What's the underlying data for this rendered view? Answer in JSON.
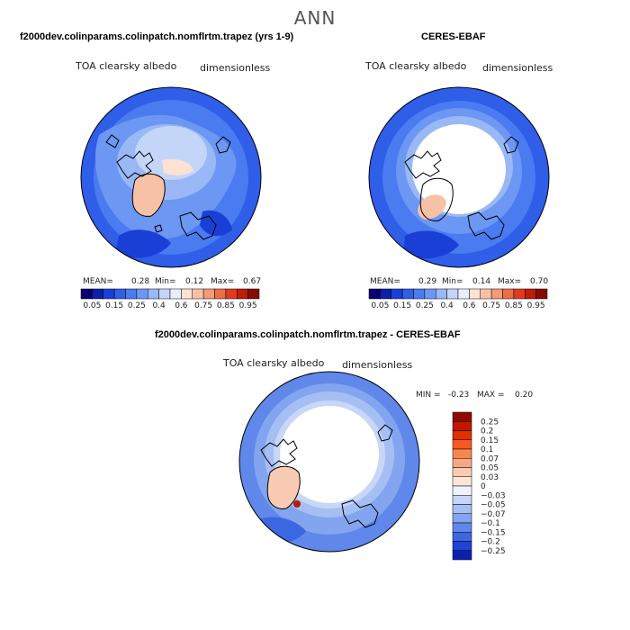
{
  "page": {
    "title": "ANN"
  },
  "panels": [
    {
      "id": "model",
      "title": "f2000dev.colinparams.colinpatch.nomflrtm.trapez (yrs 1-9)",
      "left_label": "TOA clearsky albedo",
      "right_label": "dimensionless",
      "stats": {
        "mean_label": "MEAN=",
        "mean": "0.28",
        "min_label": "Min=",
        "min": "0.12",
        "max_label": "Max=",
        "max": "0.67"
      }
    },
    {
      "id": "obs",
      "title": "CERES-EBAF",
      "left_label": "TOA clearsky albedo",
      "right_label": "dimensionless",
      "stats": {
        "mean_label": "MEAN=",
        "mean": "0.29",
        "min_label": "Min=",
        "min": "0.14",
        "max_label": "Max=",
        "max": "0.70"
      }
    },
    {
      "id": "diff",
      "title": "f2000dev.colinparams.colinpatch.nomflrtm.trapez - CERES-EBAF",
      "left_label": "TOA clearsky albedo",
      "right_label": "dimensionless",
      "stats": {
        "min_label": "MIN =",
        "min": "-0.23",
        "max_label": "MAX =",
        "max": "0.20"
      }
    }
  ],
  "chart_data": [
    {
      "type": "heatmap",
      "projection": "north-polar-stereographic",
      "title": "f2000dev.colinparams.colinpatch.nomflrtm.trapez (yrs 1-9)",
      "variable": "TOA clearsky albedo",
      "units": "dimensionless",
      "mean": 0.28,
      "min": 0.12,
      "max": 0.67,
      "colorbar": {
        "orientation": "horizontal",
        "tick_labels": [
          "0.05",
          "0.15",
          "0.25",
          "0.4",
          "0.6",
          "0.75",
          "0.85",
          "0.95"
        ],
        "levels": [
          0.05,
          0.1,
          0.15,
          0.2,
          0.25,
          0.3,
          0.4,
          0.5,
          0.6,
          0.7,
          0.75,
          0.8,
          0.85,
          0.9,
          0.95
        ],
        "colors": [
          "#08006e",
          "#0c1fa8",
          "#1a3fd6",
          "#2f5ee8",
          "#4a7bf0",
          "#6c97f2",
          "#99b8f5",
          "#c3d6f8",
          "#e6eefb",
          "#fbe2d5",
          "#f7c1a6",
          "#f39a76",
          "#ec6c48",
          "#e03a20",
          "#c01c0c",
          "#8a0a02"
        ]
      }
    },
    {
      "type": "heatmap",
      "projection": "north-polar-stereographic",
      "title": "CERES-EBAF",
      "variable": "TOA clearsky albedo",
      "units": "dimensionless",
      "mean": 0.29,
      "min": 0.14,
      "max": 0.7,
      "colorbar": {
        "orientation": "horizontal",
        "tick_labels": [
          "0.05",
          "0.15",
          "0.25",
          "0.4",
          "0.6",
          "0.75",
          "0.85",
          "0.95"
        ],
        "levels": [
          0.05,
          0.1,
          0.15,
          0.2,
          0.25,
          0.3,
          0.4,
          0.5,
          0.6,
          0.7,
          0.75,
          0.8,
          0.85,
          0.9,
          0.95
        ],
        "colors": [
          "#08006e",
          "#0c1fa8",
          "#1a3fd6",
          "#2f5ee8",
          "#4a7bf0",
          "#6c97f2",
          "#99b8f5",
          "#c3d6f8",
          "#e6eefb",
          "#fbe2d5",
          "#f7c1a6",
          "#f39a76",
          "#ec6c48",
          "#e03a20",
          "#c01c0c",
          "#8a0a02"
        ]
      }
    },
    {
      "type": "heatmap",
      "projection": "north-polar-stereographic",
      "title": "f2000dev.colinparams.colinpatch.nomflrtm.trapez - CERES-EBAF",
      "variable": "TOA clearsky albedo",
      "units": "dimensionless",
      "min": -0.23,
      "max": 0.2,
      "colorbar": {
        "orientation": "vertical",
        "tick_labels": [
          "0.25",
          "0.2",
          "0.15",
          "0.1",
          "0.07",
          "0.05",
          "0.03",
          "0",
          "−0.03",
          "−0.05",
          "−0.07",
          "−0.1",
          "−0.15",
          "−0.2",
          "−0.25"
        ],
        "colors": [
          "#8e0c00",
          "#c01800",
          "#e03000",
          "#f55a22",
          "#f7864e",
          "#f6a882",
          "#f8cbb2",
          "#fbe6da",
          "#eef2fb",
          "#c8d7f7",
          "#a6bff3",
          "#83a5ef",
          "#5f88ea",
          "#3b67e2",
          "#1e44d4",
          "#0c20b0"
        ]
      }
    }
  ]
}
